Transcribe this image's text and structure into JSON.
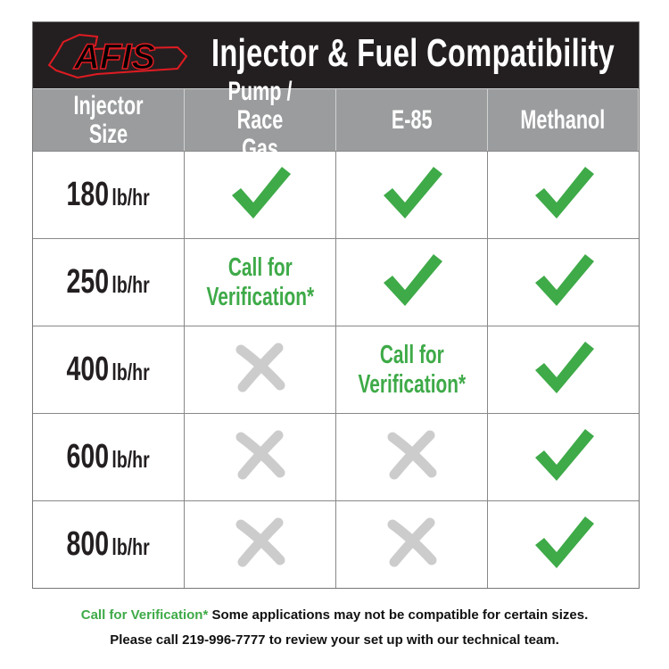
{
  "header": {
    "logo_text": "AFIS",
    "title": "Injector & Fuel Compatibility"
  },
  "colors": {
    "check": "#3eaa48",
    "cross": "#cccccc",
    "header_bg": "#9a9c9e",
    "title_bg": "#231f20",
    "logo_outline": "#e01b22"
  },
  "table": {
    "columns": [
      "Injector Size",
      "Pump / Race\nGas",
      "E-85",
      "Methanol"
    ],
    "rows": [
      {
        "size": "180",
        "unit": "lb/hr",
        "cells": [
          {
            "type": "check-icon"
          },
          {
            "type": "check-icon"
          },
          {
            "type": "check-icon"
          }
        ]
      },
      {
        "size": "250",
        "unit": "lb/hr",
        "cells": [
          {
            "type": "text",
            "text": "Call for\nVerification*"
          },
          {
            "type": "check-icon"
          },
          {
            "type": "check-icon"
          }
        ]
      },
      {
        "size": "400",
        "unit": "lb/hr",
        "cells": [
          {
            "type": "cross-icon"
          },
          {
            "type": "text",
            "text": "Call for\nVerification*"
          },
          {
            "type": "check-icon"
          }
        ]
      },
      {
        "size": "600",
        "unit": "lb/hr",
        "cells": [
          {
            "type": "cross-icon"
          },
          {
            "type": "cross-icon"
          },
          {
            "type": "check-icon"
          }
        ]
      },
      {
        "size": "800",
        "unit": "lb/hr",
        "cells": [
          {
            "type": "cross-icon"
          },
          {
            "type": "cross-icon"
          },
          {
            "type": "check-icon"
          }
        ]
      }
    ]
  },
  "footer": {
    "note_highlight": "Call for Verification*",
    "note_text": " Some applications may not be compatible for certain sizes.",
    "contact": "Please call 219-996-7777 to review your set up with our technical team."
  }
}
